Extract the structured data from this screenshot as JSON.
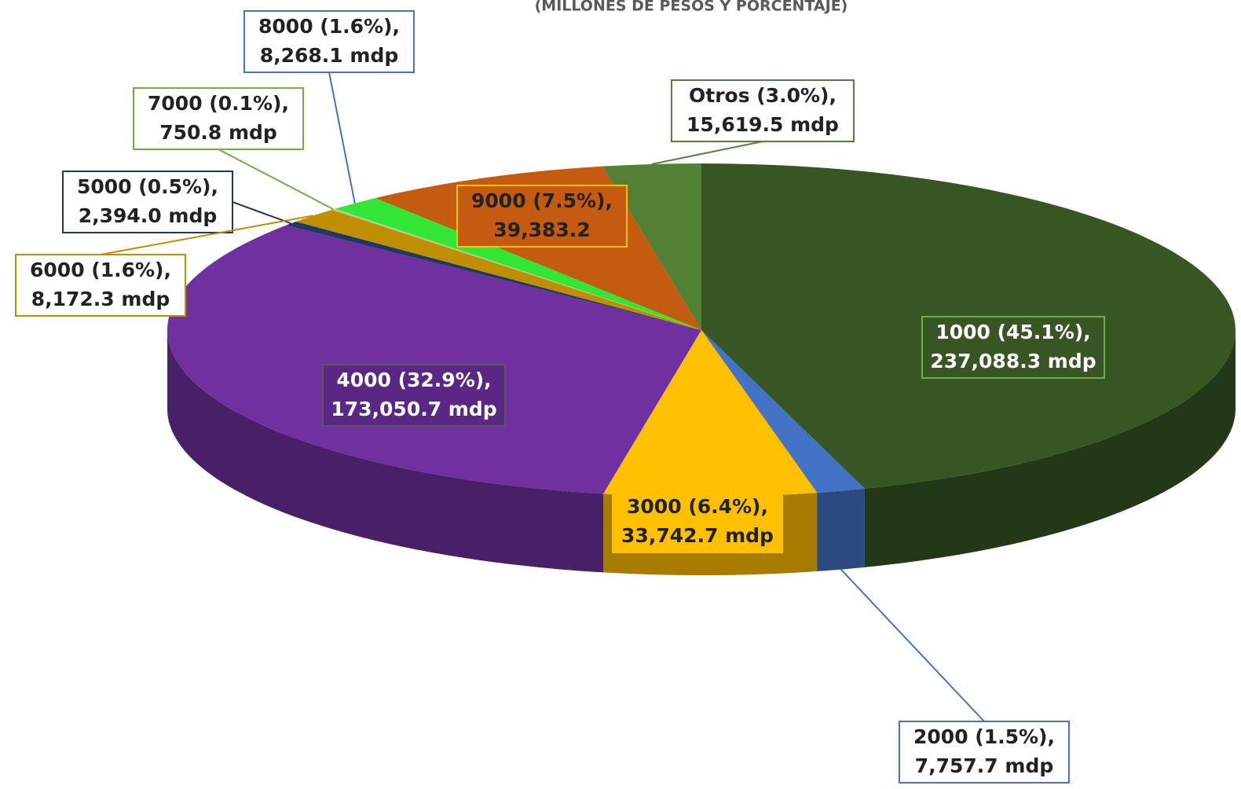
{
  "chart_data": {
    "type": "pie",
    "subtitle": "(MILLONES DE PESOS Y PORCENTAJE)",
    "series": [
      {
        "percent_labels": [
          "1000 (45.1%),",
          "2000 (1.5%),",
          "3000 (6.4%),",
          "4000 (32.9%),",
          "5000 (0.5%),",
          "6000 (1.6%),",
          "7000 (0.1%),",
          "8000 (1.6%),",
          "9000 (7.5%),",
          "Otros (3.0%),"
        ],
        "values": [
          237088.3,
          7757.7,
          33742.7,
          173050.7,
          2394.0,
          8172.3,
          750.8,
          8268.1,
          39383.2,
          15619.5
        ],
        "value_labels": [
          "237,088.3 mdp",
          "7,757.7 mdp",
          "33,742.7 mdp",
          "173,050.7 mdp",
          "2,394.0 mdp",
          "8,172.3 mdp",
          "750.8 mdp",
          "8,268.1 mdp",
          "39,383.2",
          "15,619.5 mdp"
        ],
        "colors": [
          "#375623",
          "#4472c4",
          "#ffc000",
          "#7030a0",
          "#203864",
          "#bf8f00",
          "#a9d18e",
          "#33e633",
          "#c55a11",
          "#548235"
        ]
      }
    ]
  }
}
